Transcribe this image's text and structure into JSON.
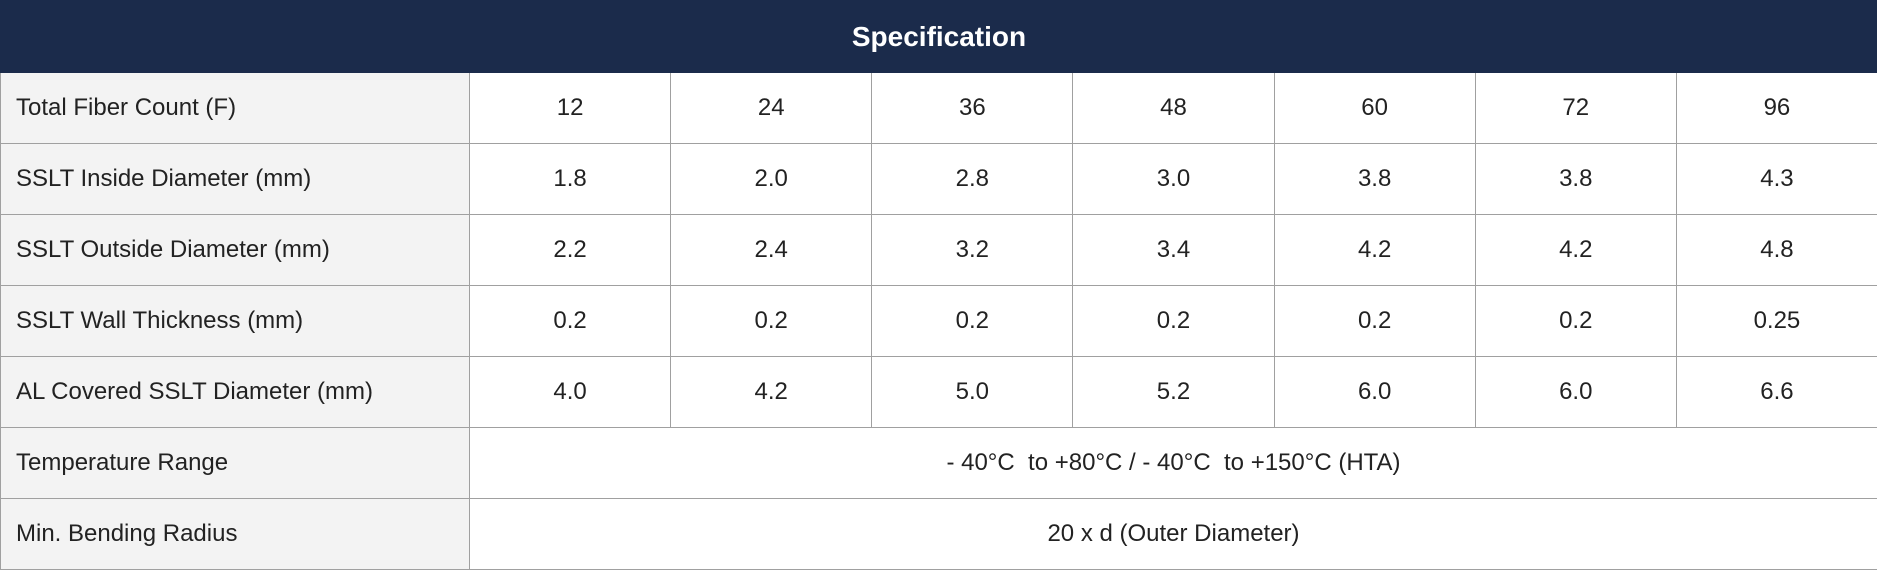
{
  "table": {
    "title": "Specification",
    "rows": [
      {
        "label": "Total Fiber Count (F)",
        "cells": [
          "12",
          "24",
          "36",
          "48",
          "60",
          "72",
          "96"
        ]
      },
      {
        "label": "SSLT Inside Diameter (mm)",
        "cells": [
          "1.8",
          "2.0",
          "2.8",
          "3.0",
          "3.8",
          "3.8",
          "4.3"
        ]
      },
      {
        "label": "SSLT Outside Diameter (mm)",
        "cells": [
          "2.2",
          "2.4",
          "3.2",
          "3.4",
          "4.2",
          "4.2",
          "4.8"
        ]
      },
      {
        "label": "SSLT Wall Thickness (mm)",
        "cells": [
          "0.2",
          "0.2",
          "0.2",
          "0.2",
          "0.2",
          "0.2",
          "0.25"
        ]
      },
      {
        "label": "AL Covered SSLT Diameter (mm)",
        "cells": [
          "4.0",
          "4.2",
          "5.0",
          "5.2",
          "6.0",
          "6.0",
          "6.6"
        ]
      },
      {
        "label": "Temperature Range",
        "cells": [
          "- 40°C  to +80°C / - 40°C  to +150°C (HTA)"
        ]
      },
      {
        "label": "Min. Bending Radius",
        "cells": [
          "20 x d (Outer Diameter)"
        ]
      }
    ]
  }
}
